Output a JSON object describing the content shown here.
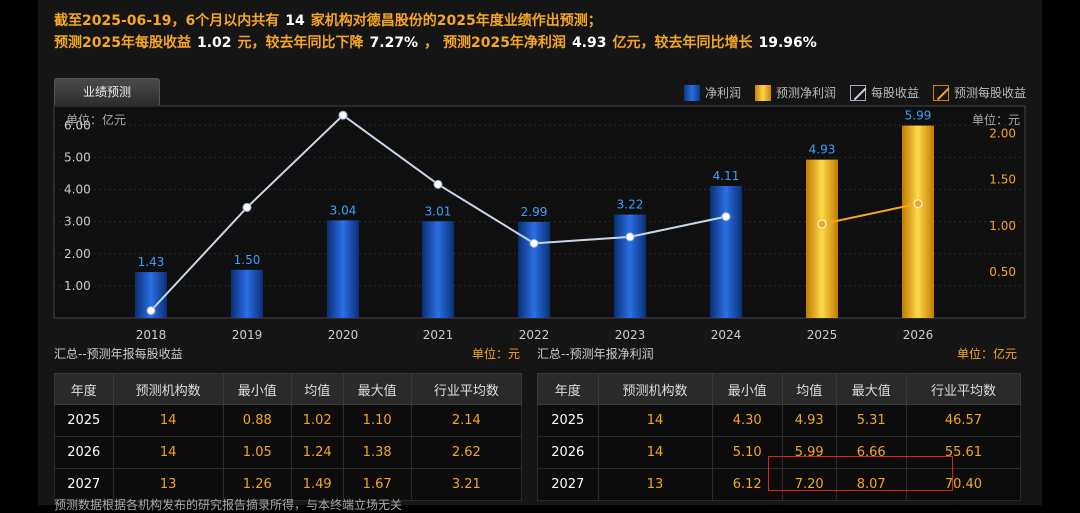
{
  "header": {
    "line1_a": "截至2025-06-19，6个月以内共有",
    "line1_num": "14",
    "line1_b": "家机构对德昌股份的2025年度业绩作出预测；",
    "line2_a": "预测2025年每股收益",
    "line2_eps": "1.02",
    "line2_b": "元，较去年同比下降",
    "line2_eps_change": "7.27%",
    "line2_c": "，  预测2025年净利润",
    "line2_np": "4.93",
    "line2_d": "亿元，较去年同比增长",
    "line2_np_change": "19.96%"
  },
  "tab_label": "业绩预测",
  "legend": [
    "净利润",
    "预测净利润",
    "每股收益",
    "预测每股收益"
  ],
  "colors": {
    "bar": "#1f5cc8",
    "forecast_bar": "#f5b400",
    "eps_line": "#c9d6ea",
    "forecast_eps_line": "#f5a623"
  },
  "chart_data": {
    "type": "bar",
    "categories": [
      "2018",
      "2019",
      "2020",
      "2021",
      "2022",
      "2023",
      "2024",
      "2025",
      "2026"
    ],
    "series": [
      {
        "name": "净利润",
        "type": "bar",
        "values": [
          1.43,
          1.5,
          3.04,
          3.01,
          2.99,
          3.22,
          4.11,
          null,
          null
        ]
      },
      {
        "name": "预测净利润",
        "type": "bar",
        "values": [
          null,
          null,
          null,
          null,
          null,
          null,
          null,
          4.93,
          5.99
        ]
      },
      {
        "name": "每股收益",
        "type": "line",
        "axis": "right",
        "values": [
          0.08,
          1.2,
          2.2,
          1.45,
          0.81,
          0.88,
          1.1,
          null,
          null
        ]
      },
      {
        "name": "预测每股收益",
        "type": "line",
        "axis": "right",
        "values": [
          null,
          null,
          null,
          null,
          null,
          null,
          null,
          1.02,
          1.24
        ]
      }
    ],
    "left_axis": {
      "unit": "单位：亿元",
      "ticks": [
        "1.00",
        "2.00",
        "3.00",
        "4.00",
        "5.00",
        "6.00"
      ],
      "ylim": [
        0,
        6.6
      ]
    },
    "right_axis": {
      "unit": "单位：元",
      "ticks": [
        "0.50",
        "1.00",
        "1.50",
        "2.00"
      ],
      "ylim": [
        0,
        2.3
      ]
    }
  },
  "eps_section": {
    "title": "汇总--预测年报每股收益",
    "unit": "单位：元",
    "columns": [
      "年度",
      "预测机构数",
      "最小值",
      "均值",
      "最大值",
      "行业平均数"
    ],
    "rows": [
      [
        "2025",
        "14",
        "0.88",
        "1.02",
        "1.10",
        "2.14"
      ],
      [
        "2026",
        "14",
        "1.05",
        "1.24",
        "1.38",
        "2.62"
      ],
      [
        "2027",
        "13",
        "1.26",
        "1.49",
        "1.67",
        "3.21"
      ]
    ]
  },
  "np_section": {
    "title": "汇总--预测年报净利润",
    "unit": "单位：亿元",
    "columns": [
      "年度",
      "预测机构数",
      "最小值",
      "均值",
      "最大值",
      "行业平均数"
    ],
    "rows": [
      [
        "2025",
        "14",
        "4.30",
        "4.93",
        "5.31",
        "46.57"
      ],
      [
        "2026",
        "14",
        "5.10",
        "5.99",
        "6.66",
        "55.61"
      ],
      [
        "2027",
        "13",
        "6.12",
        "7.20",
        "8.07",
        "70.40"
      ]
    ]
  },
  "footnote": "预测数据根据各机构发布的研究报告摘录所得，与本终端立场无关"
}
